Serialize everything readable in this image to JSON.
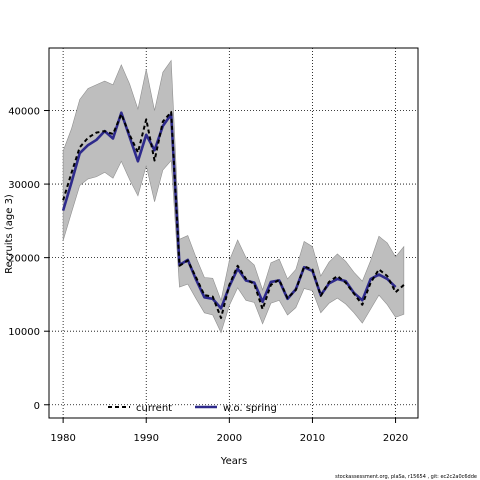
{
  "chart_data": {
    "type": "line",
    "xlabel": "Years",
    "ylabel": "Recruits (age 3)",
    "xlim": [
      1978.3,
      2022.7
    ],
    "ylim": [
      -1800,
      48500
    ],
    "x_ticks": [
      1980,
      1990,
      2000,
      2010,
      2020
    ],
    "y_ticks": [
      0,
      10000,
      20000,
      30000,
      40000
    ],
    "x_tick_labels": [
      "1980",
      "1990",
      "2000",
      "2010",
      "2020"
    ],
    "y_tick_labels": [
      "0",
      "10000",
      "20000",
      "30000",
      "40000"
    ],
    "grid": true,
    "grid_style": "dotted",
    "legend_position": "bottom-left",
    "years": [
      1980,
      1981,
      1982,
      1983,
      1984,
      1985,
      1986,
      1987,
      1988,
      1989,
      1990,
      1991,
      1992,
      1993,
      1994,
      1995,
      1996,
      1997,
      1998,
      1999,
      2000,
      2001,
      2002,
      2003,
      2004,
      2005,
      2006,
      2007,
      2008,
      2009,
      2010,
      2011,
      2012,
      2013,
      2014,
      2015,
      2016,
      2017,
      2018,
      2019,
      2020,
      2021
    ],
    "band": {
      "upper": [
        34500,
        37500,
        41500,
        43000,
        43500,
        44000,
        43500,
        46200,
        43600,
        40200,
        45600,
        40000,
        45200,
        46800,
        22500,
        23000,
        20000,
        17300,
        17200,
        14200,
        19600,
        22400,
        20000,
        19000,
        15600,
        19300,
        19800,
        17100,
        18400,
        22200,
        21500,
        17500,
        19400,
        20500,
        19500,
        18000,
        16800,
        19600,
        22900,
        22000,
        20100,
        21500
      ],
      "lower": [
        22300,
        26100,
        29800,
        30700,
        31000,
        31600,
        30800,
        33100,
        30600,
        28400,
        32500,
        27600,
        31900,
        33200,
        16000,
        16400,
        14400,
        12500,
        12200,
        9800,
        13500,
        15900,
        14200,
        13900,
        11000,
        13800,
        14200,
        12200,
        13200,
        15800,
        15500,
        12500,
        13800,
        14500,
        13700,
        12500,
        11100,
        13000,
        14900,
        13600,
        11900,
        12300
      ]
    },
    "series": [
      {
        "name": "current",
        "color": "#000000",
        "style": "dashed",
        "values": [
          27800,
          31500,
          35000,
          36300,
          37000,
          37200,
          36800,
          39500,
          36700,
          34300,
          38800,
          33200,
          38500,
          39800,
          18900,
          19600,
          17300,
          14900,
          14700,
          11800,
          16300,
          18900,
          17100,
          16400,
          13000,
          16300,
          17000,
          14500,
          15600,
          18800,
          18400,
          14800,
          16700,
          17500,
          16600,
          15100,
          13600,
          16600,
          18400,
          17500,
          15300,
          16300
        ]
      },
      {
        "name": "w.o. spring",
        "color": "#2e2a8c",
        "style": "solid",
        "values": [
          26400,
          30200,
          34200,
          35300,
          36000,
          37200,
          36200,
          39700,
          36400,
          33100,
          36700,
          34600,
          37900,
          39500,
          19000,
          19700,
          17000,
          14600,
          14400,
          13100,
          16100,
          18500,
          16900,
          16600,
          14000,
          16700,
          16900,
          14400,
          15700,
          18700,
          18200,
          14900,
          16500,
          17100,
          16800,
          15200,
          14200,
          17100,
          17700,
          17100,
          16000,
          null
        ]
      }
    ],
    "band_color": "#bebebe"
  },
  "footer": "stockassessment.org, plaSa, r15654 , git: ec2c2a0c6dde"
}
